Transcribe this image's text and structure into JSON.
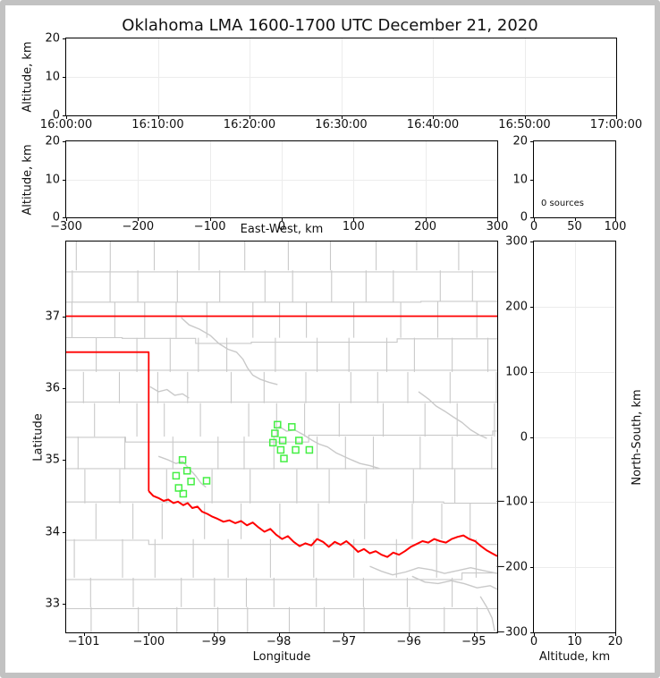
{
  "title": "Oklahoma LMA 1600-1700 UTC December 21, 2020",
  "colors": {
    "station_marker": "#44ef44",
    "state_border": "#ff0000",
    "county_line": "#c9c9c9",
    "grid_line": "#ececec",
    "frame_border": "#c2c2c2",
    "spine": "#000000"
  },
  "chart_data": [
    {
      "id": "altitude-vs-time",
      "type": "scatter",
      "ylabel": "Altitude, km",
      "xlim_seconds": [
        0,
        3600
      ],
      "x_tick_values": [
        0,
        600,
        1200,
        1800,
        2400,
        3000,
        3600
      ],
      "x_tick_labels": [
        "16:00:00",
        "16:10:00",
        "16:20:00",
        "16:30:00",
        "16:40:00",
        "16:50:00",
        "17:00:00"
      ],
      "ylim": [
        0,
        20
      ],
      "y_tick_values": [
        0,
        10,
        20
      ],
      "y_tick_labels": [
        "0",
        "10",
        "20"
      ],
      "points": []
    },
    {
      "id": "altitude-vs-eastwest",
      "type": "scatter",
      "xlabel": "East-West, km",
      "ylabel": "Altitude, km",
      "xlim": [
        -300,
        300
      ],
      "x_tick_values": [
        -300,
        -200,
        -100,
        0,
        100,
        200,
        300
      ],
      "x_tick_labels": [
        "−300",
        "−200",
        "−100",
        "0",
        "100",
        "200",
        "300"
      ],
      "ylim": [
        0,
        20
      ],
      "y_tick_values": [
        0,
        10,
        20
      ],
      "y_tick_labels": [
        "0",
        "10",
        "20"
      ],
      "points": []
    },
    {
      "id": "altitude-histogram",
      "type": "line",
      "annotation": "0 sources",
      "xlim": [
        0,
        100
      ],
      "x_tick_values": [
        0,
        50,
        100
      ],
      "x_tick_labels": [
        "0",
        "50",
        "100"
      ],
      "ylim": [
        0,
        20
      ],
      "y_tick_values": [
        0,
        10,
        20
      ],
      "y_tick_labels": [
        "0",
        "10",
        "20"
      ],
      "points": []
    },
    {
      "id": "plan-view-map",
      "type": "scatter",
      "xlabel": "Longitude",
      "ylabel": "Latitude",
      "xlim": [
        -101.27,
        -94.64
      ],
      "x_tick_values": [
        -101,
        -100,
        -99,
        -98,
        -97,
        -96,
        -95
      ],
      "x_tick_labels": [
        "−101",
        "−100",
        "−99",
        "−98",
        "−97",
        "−96",
        "−95"
      ],
      "ylim": [
        32.6,
        38.04
      ],
      "y_tick_values": [
        37,
        36,
        35,
        34,
        33
      ],
      "y_tick_labels": [
        "37",
        "36",
        "35",
        "34",
        "33"
      ],
      "points": [],
      "stations": [
        {
          "lon": -98.02,
          "lat": 35.49
        },
        {
          "lon": -97.8,
          "lat": 35.46
        },
        {
          "lon": -98.06,
          "lat": 35.37
        },
        {
          "lon": -97.94,
          "lat": 35.27
        },
        {
          "lon": -98.09,
          "lat": 35.24
        },
        {
          "lon": -97.69,
          "lat": 35.27
        },
        {
          "lon": -97.97,
          "lat": 35.14
        },
        {
          "lon": -97.74,
          "lat": 35.14
        },
        {
          "lon": -97.53,
          "lat": 35.14
        },
        {
          "lon": -97.92,
          "lat": 35.02
        },
        {
          "lon": -99.48,
          "lat": 35.0
        },
        {
          "lon": -99.41,
          "lat": 34.85
        },
        {
          "lon": -99.58,
          "lat": 34.78
        },
        {
          "lon": -99.35,
          "lat": 34.7
        },
        {
          "lon": -99.54,
          "lat": 34.61
        },
        {
          "lon": -99.47,
          "lat": 34.53
        },
        {
          "lon": -99.11,
          "lat": 34.71
        }
      ],
      "state_border": {
        "north": [
          [
            -101.27,
            37.0
          ],
          [
            -94.64,
            37.0
          ]
        ],
        "panhandle": [
          [
            -101.27,
            36.5
          ],
          [
            -100.0,
            36.5
          ],
          [
            -100.0,
            34.565
          ]
        ],
        "red_river": [
          [
            -100.0,
            34.565
          ],
          [
            -99.93,
            34.5
          ],
          [
            -99.85,
            34.47
          ],
          [
            -99.77,
            34.43
          ],
          [
            -99.7,
            34.45
          ],
          [
            -99.62,
            34.4
          ],
          [
            -99.55,
            34.42
          ],
          [
            -99.47,
            34.37
          ],
          [
            -99.4,
            34.4
          ],
          [
            -99.33,
            34.33
          ],
          [
            -99.25,
            34.35
          ],
          [
            -99.18,
            34.28
          ],
          [
            -99.1,
            34.25
          ],
          [
            -99.02,
            34.21
          ],
          [
            -98.94,
            34.18
          ],
          [
            -98.85,
            34.14
          ],
          [
            -98.76,
            34.16
          ],
          [
            -98.67,
            34.12
          ],
          [
            -98.58,
            34.15
          ],
          [
            -98.49,
            34.09
          ],
          [
            -98.4,
            34.13
          ],
          [
            -98.31,
            34.06
          ],
          [
            -98.22,
            34.0
          ],
          [
            -98.13,
            34.04
          ],
          [
            -98.04,
            33.96
          ],
          [
            -97.95,
            33.9
          ],
          [
            -97.86,
            33.94
          ],
          [
            -97.77,
            33.86
          ],
          [
            -97.68,
            33.8
          ],
          [
            -97.59,
            33.84
          ],
          [
            -97.5,
            33.81
          ],
          [
            -97.41,
            33.9
          ],
          [
            -97.32,
            33.86
          ],
          [
            -97.23,
            33.79
          ],
          [
            -97.14,
            33.86
          ],
          [
            -97.05,
            33.82
          ],
          [
            -96.96,
            33.87
          ],
          [
            -96.87,
            33.8
          ],
          [
            -96.78,
            33.72
          ],
          [
            -96.69,
            33.76
          ],
          [
            -96.6,
            33.7
          ],
          [
            -96.51,
            33.73
          ],
          [
            -96.42,
            33.68
          ],
          [
            -96.33,
            33.65
          ],
          [
            -96.24,
            33.71
          ],
          [
            -96.15,
            33.68
          ],
          [
            -96.06,
            33.73
          ],
          [
            -95.97,
            33.79
          ],
          [
            -95.88,
            33.83
          ],
          [
            -95.79,
            33.87
          ],
          [
            -95.7,
            33.85
          ],
          [
            -95.61,
            33.9
          ],
          [
            -95.52,
            33.87
          ],
          [
            -95.43,
            33.85
          ],
          [
            -95.34,
            33.9
          ],
          [
            -95.25,
            33.93
          ],
          [
            -95.16,
            33.95
          ],
          [
            -95.07,
            33.9
          ],
          [
            -94.98,
            33.87
          ],
          [
            -94.89,
            33.8
          ],
          [
            -94.8,
            33.74
          ],
          [
            -94.72,
            33.7
          ],
          [
            -94.64,
            33.66
          ]
        ]
      },
      "rivers": [
        [
          [
            -99.5,
            36.98
          ],
          [
            -99.38,
            36.88
          ],
          [
            -99.22,
            36.82
          ],
          [
            -99.05,
            36.73
          ],
          [
            -98.92,
            36.62
          ],
          [
            -98.78,
            36.54
          ],
          [
            -98.65,
            36.5
          ],
          [
            -98.55,
            36.4
          ],
          [
            -98.48,
            36.28
          ],
          [
            -98.4,
            36.18
          ],
          [
            -98.28,
            36.12
          ],
          [
            -98.15,
            36.08
          ],
          [
            -98.02,
            36.05
          ]
        ],
        [
          [
            -99.98,
            36.02
          ],
          [
            -99.85,
            35.95
          ],
          [
            -99.72,
            35.98
          ],
          [
            -99.6,
            35.9
          ],
          [
            -99.48,
            35.92
          ],
          [
            -99.38,
            35.86
          ]
        ],
        [
          [
            -99.85,
            35.05
          ],
          [
            -99.7,
            35.0
          ],
          [
            -99.58,
            34.95
          ],
          [
            -99.48,
            34.98
          ],
          [
            -99.38,
            34.88
          ],
          [
            -99.28,
            34.78
          ],
          [
            -99.2,
            34.68
          ],
          [
            -99.12,
            34.62
          ]
        ],
        [
          [
            -98.0,
            35.47
          ],
          [
            -97.88,
            35.4
          ],
          [
            -97.76,
            35.42
          ],
          [
            -97.62,
            35.35
          ],
          [
            -97.5,
            35.28
          ],
          [
            -97.38,
            35.22
          ],
          [
            -97.25,
            35.18
          ],
          [
            -97.12,
            35.1
          ],
          [
            -97.0,
            35.05
          ],
          [
            -96.88,
            35.0
          ],
          [
            -96.75,
            34.95
          ],
          [
            -96.6,
            34.92
          ],
          [
            -96.45,
            34.88
          ]
        ],
        [
          [
            -95.85,
            35.95
          ],
          [
            -95.7,
            35.85
          ],
          [
            -95.58,
            35.75
          ],
          [
            -95.45,
            35.68
          ],
          [
            -95.32,
            35.6
          ],
          [
            -95.18,
            35.52
          ],
          [
            -95.05,
            35.42
          ],
          [
            -94.92,
            35.35
          ],
          [
            -94.8,
            35.3
          ]
        ],
        [
          [
            -96.6,
            33.52
          ],
          [
            -96.42,
            33.45
          ],
          [
            -96.25,
            33.4
          ],
          [
            -96.05,
            33.44
          ],
          [
            -95.85,
            33.5
          ],
          [
            -95.65,
            33.47
          ],
          [
            -95.45,
            33.42
          ],
          [
            -95.25,
            33.46
          ],
          [
            -95.05,
            33.5
          ],
          [
            -94.85,
            33.46
          ],
          [
            -94.64,
            33.42
          ]
        ],
        [
          [
            -95.95,
            33.38
          ],
          [
            -95.75,
            33.3
          ],
          [
            -95.55,
            33.28
          ],
          [
            -95.35,
            33.32
          ],
          [
            -95.15,
            33.28
          ],
          [
            -94.95,
            33.22
          ],
          [
            -94.75,
            33.25
          ],
          [
            -94.64,
            33.2
          ]
        ],
        [
          [
            -94.9,
            33.1
          ],
          [
            -94.8,
            32.95
          ],
          [
            -94.72,
            32.8
          ],
          [
            -94.68,
            32.62
          ]
        ]
      ]
    },
    {
      "id": "northsouth-vs-altitude",
      "type": "scatter",
      "xlabel": "Altitude, km",
      "ylabel": "North-South, km",
      "xlim": [
        0,
        20
      ],
      "x_tick_values": [
        0,
        10,
        20
      ],
      "x_tick_labels": [
        "0",
        "10",
        "20"
      ],
      "ylim": [
        -300,
        300
      ],
      "y_tick_values": [
        300,
        200,
        100,
        0,
        -100,
        -200,
        -300
      ],
      "y_tick_labels": [
        "300",
        "200",
        "100",
        "0",
        "−100",
        "−200",
        "−300"
      ],
      "points": []
    }
  ]
}
